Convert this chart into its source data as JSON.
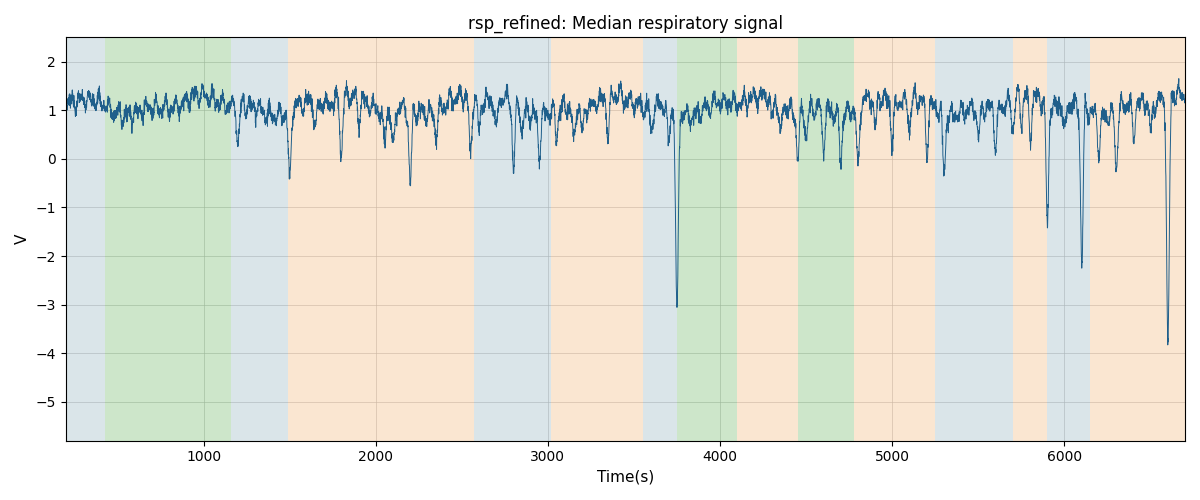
{
  "title": "rsp_refined: Median respiratory signal",
  "xlabel": "Time(s)",
  "ylabel": "V",
  "xlim": [
    200,
    6700
  ],
  "ylim": [
    -5.8,
    2.5
  ],
  "yticks": [
    -5,
    -4,
    -3,
    -2,
    -1,
    0,
    1,
    2
  ],
  "xticks": [
    1000,
    2000,
    3000,
    4000,
    5000,
    6000
  ],
  "line_color": "#1f5f8b",
  "line_width": 0.7,
  "background_color": "#ffffff",
  "grid_color": "#aaaaaa",
  "title_fontsize": 12,
  "label_fontsize": 11,
  "colored_regions": [
    {
      "xmin": 200,
      "xmax": 430,
      "color": "#aec6cf",
      "alpha": 0.45
    },
    {
      "xmin": 430,
      "xmax": 1160,
      "color": "#90c98a",
      "alpha": 0.45
    },
    {
      "xmin": 1160,
      "xmax": 1490,
      "color": "#aec6cf",
      "alpha": 0.45
    },
    {
      "xmin": 1490,
      "xmax": 2570,
      "color": "#f5c89a",
      "alpha": 0.45
    },
    {
      "xmin": 2570,
      "xmax": 3020,
      "color": "#aec6cf",
      "alpha": 0.45
    },
    {
      "xmin": 3020,
      "xmax": 3550,
      "color": "#f5c89a",
      "alpha": 0.45
    },
    {
      "xmin": 3550,
      "xmax": 3750,
      "color": "#aec6cf",
      "alpha": 0.45
    },
    {
      "xmin": 3750,
      "xmax": 4100,
      "color": "#90c98a",
      "alpha": 0.45
    },
    {
      "xmin": 4100,
      "xmax": 4450,
      "color": "#f5c89a",
      "alpha": 0.45
    },
    {
      "xmin": 4450,
      "xmax": 4780,
      "color": "#90c98a",
      "alpha": 0.45
    },
    {
      "xmin": 4780,
      "xmax": 5250,
      "color": "#f5c89a",
      "alpha": 0.45
    },
    {
      "xmin": 5250,
      "xmax": 5700,
      "color": "#aec6cf",
      "alpha": 0.45
    },
    {
      "xmin": 5700,
      "xmax": 5900,
      "color": "#f5c89a",
      "alpha": 0.45
    },
    {
      "xmin": 5900,
      "xmax": 6150,
      "color": "#aec6cf",
      "alpha": 0.45
    },
    {
      "xmin": 6150,
      "xmax": 6700,
      "color": "#f5c89a",
      "alpha": 0.45
    }
  ]
}
